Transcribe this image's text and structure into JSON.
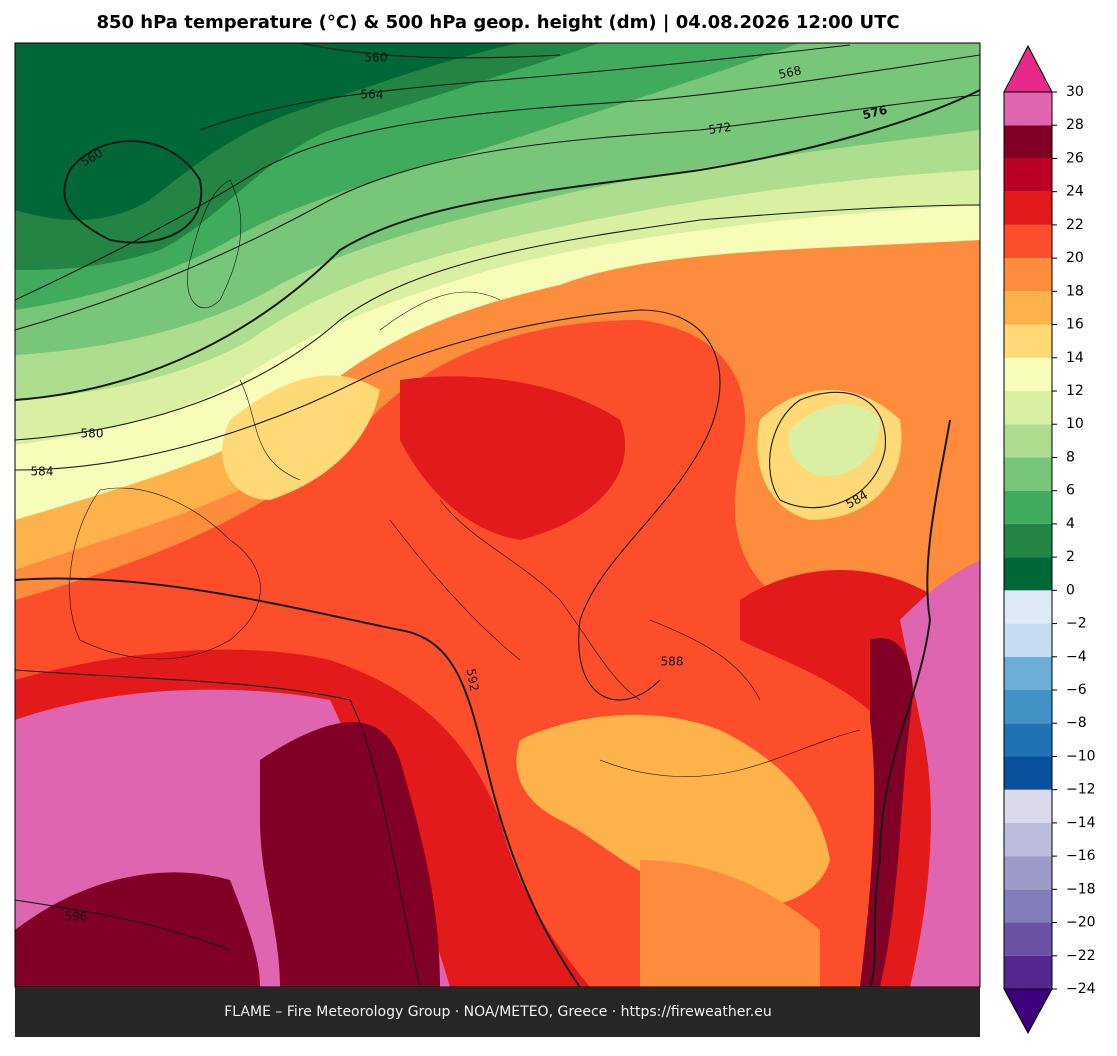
{
  "title": "850 hPa temperature (°C) & 500 hPa geop. height (dm)  |  04.08.2026 12:00 UTC",
  "footer": "FLAME – Fire Meteorology Group · NOA/METEO, Greece · https://fireweather.eu",
  "colorbar": {
    "ticks": [
      {
        "value": -24,
        "label": "−24"
      },
      {
        "value": -22,
        "label": "−22"
      },
      {
        "value": -20,
        "label": "−20"
      },
      {
        "value": -18,
        "label": "−18"
      },
      {
        "value": -16,
        "label": "−16"
      },
      {
        "value": -14,
        "label": "−14"
      },
      {
        "value": -12,
        "label": "−12"
      },
      {
        "value": -10,
        "label": "−10"
      },
      {
        "value": -8,
        "label": "−8"
      },
      {
        "value": -6,
        "label": "−6"
      },
      {
        "value": -4,
        "label": "−4"
      },
      {
        "value": -2,
        "label": "−2"
      },
      0,
      2,
      4,
      6,
      8,
      10,
      12,
      14,
      16,
      18,
      20,
      22,
      24,
      26,
      28,
      30
    ],
    "colors": [
      "#54278f",
      "#6a51a3",
      "#807dba",
      "#9e9ac8",
      "#bcbddc",
      "#dadaeb",
      "#08519c",
      "#2171b5",
      "#4292c6",
      "#6baed6",
      "#c6dbef",
      "#deebf7",
      "#006837",
      "#238443",
      "#41ab5d",
      "#78c679",
      "#addd8e",
      "#d9f0a3",
      "#f7fcb9",
      "#fed976",
      "#feb24c",
      "#fd8d3c",
      "#fc4e2a",
      "#e31a1c",
      "#bd0026",
      "#800026",
      "#df65b0"
    ],
    "extend_colors": [
      "#3f007d",
      "#e7298a"
    ]
  },
  "contour_labels": [
    560,
    564,
    568,
    572,
    576,
    560,
    580,
    584,
    584,
    588,
    592,
    596
  ]
}
